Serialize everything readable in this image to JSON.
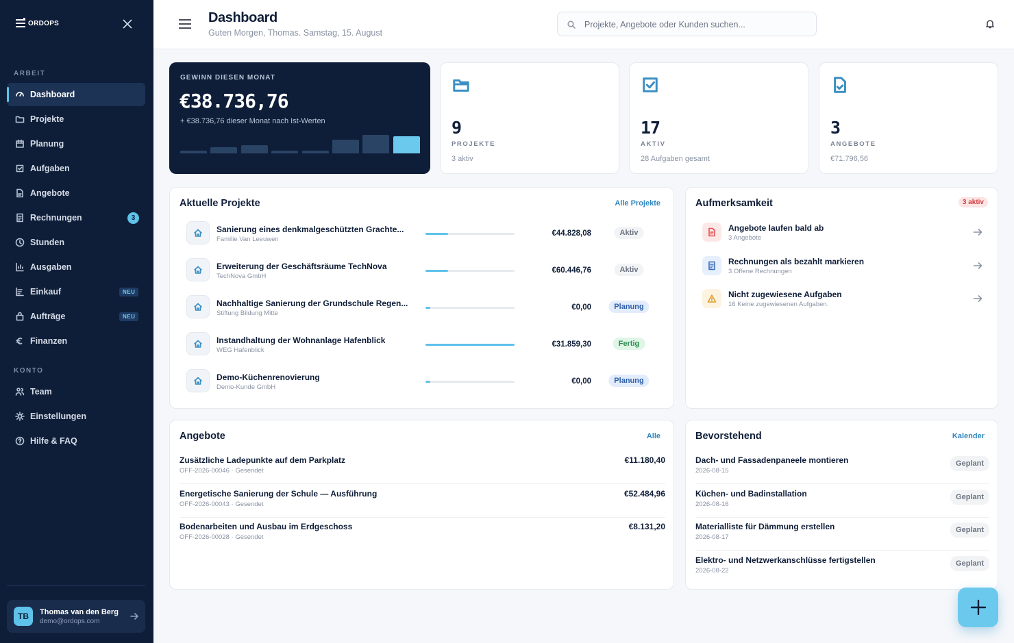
{
  "sidebar": {
    "logo": "ORDOPS",
    "sections": [
      {
        "title": "ARBEIT",
        "items": [
          {
            "label": "Dashboard"
          },
          {
            "label": "Projekte"
          },
          {
            "label": "Planung"
          },
          {
            "label": "Aufgaben"
          },
          {
            "label": "Angebote"
          },
          {
            "label": "Rechnungen",
            "badge": 3
          },
          {
            "label": "Stunden"
          },
          {
            "label": "Ausgaben"
          },
          {
            "label": "Einkauf",
            "badge": "NEU"
          },
          {
            "label": "Aufträge",
            "badge": "NEU"
          },
          {
            "label": "Finanzen"
          }
        ]
      },
      {
        "title": "KONTO",
        "items": [
          {
            "label": "Team"
          },
          {
            "label": "Einstellungen"
          },
          {
            "label": "Hilfe & FAQ"
          }
        ]
      }
    ],
    "user": {
      "initials": "TB",
      "name": "Thomas van den Berg",
      "email": "demo@ordops.com"
    }
  },
  "header": {
    "title": "Dashboard",
    "subtitle": "Guten Morgen, Thomas. Samstag, 15. August",
    "search": "Projekte, Angebote oder Kunden suchen..."
  },
  "profit": {
    "label": "GEWINN DIESEN MONAT",
    "value": "€38.736,76",
    "note": "+ €38.736,76 dieser Monat nach Ist-Werten",
    "bars": [
      4,
      9,
      12,
      4,
      4,
      20,
      27,
      25
    ]
  },
  "stats": [
    {
      "value": 9,
      "label": "PROJEKTE",
      "sub": "3 aktiv"
    },
    {
      "value": 17,
      "label": "AKTIV",
      "sub": "28 Aufgaben gesamt"
    },
    {
      "value": 3,
      "label": "ANGEBOTE",
      "sub": "€71.796,56"
    }
  ],
  "projects": {
    "title": "Aktuelle Projekte",
    "link": "Alle Projekte",
    "rows": [
      {
        "name": "Sanierung eines denkmalgeschützten Grachte...",
        "client": "Familie Van Leeuwen",
        "progress": 25,
        "amount": "€44.828,08",
        "status": "Aktiv",
        "status_color": "#6b7280",
        "status_bg": "#f1f3f5"
      },
      {
        "name": "Erweiterung der Geschäftsräume TechNova",
        "client": "TechNova GmbH",
        "progress": 25,
        "amount": "€60.446,76",
        "status": "Aktiv",
        "status_color": "#6b7280",
        "status_bg": "#f1f3f5"
      },
      {
        "name": "Nachhaltige Sanierung der Grundschule Regen...",
        "client": "Stiftung Bildung Mitte",
        "progress": 5,
        "amount": "€0,00",
        "status": "Planung",
        "status_color": "#2f5fa8",
        "status_bg": "#e3ecfb"
      },
      {
        "name": "Instandhaltung der Wohnanlage Hafenblick",
        "client": "WEG Hafenblick",
        "progress": 100,
        "amount": "€31.859,30",
        "status": "Fertig",
        "status_color": "#2d8a4e",
        "status_bg": "#dff5e6"
      },
      {
        "name": "Demo-Küchenrenovierung",
        "client": "Demo-Kunde GmbH",
        "progress": 5,
        "amount": "€0,00",
        "status": "Planung",
        "status_color": "#2f5fa8",
        "status_bg": "#e3ecfb"
      }
    ]
  },
  "attention": {
    "title": "Aufmerksamkeit",
    "badge": "3 aktiv",
    "rows": [
      {
        "title": "Angebote laufen bald ab",
        "sub": "3 Angebote",
        "color": "#e05252",
        "bg": "#fde8e8"
      },
      {
        "title": "Rechnungen als bezahlt markieren",
        "sub": "3 Offene Rechnungen",
        "color": "#3b6fb6",
        "bg": "#e6effb"
      },
      {
        "title": "Nicht zugewiesene Aufgaben",
        "sub": "16 Keine zugewiesenen Aufgaben.",
        "color": "#e0a030",
        "bg": "#fdf3e1"
      }
    ]
  },
  "offers": {
    "title": "Angebote",
    "link": "Alle",
    "rows": [
      {
        "title": "Zusätzliche Ladepunkte auf dem Parkplatz",
        "sub": "OFF-2026-00046 · Gesendet",
        "amount": "€11.180,40"
      },
      {
        "title": "Energetische Sanierung der Schule — Ausführung",
        "sub": "OFF-2026-00043 · Gesendet",
        "amount": "€52.484,96"
      },
      {
        "title": "Bodenarbeiten und Ausbau im Erdgeschoss",
        "sub": "OFF-2026-00028 · Gesendet",
        "amount": "€8.131,20"
      }
    ]
  },
  "upcoming": {
    "title": "Bevorstehend",
    "link": "Kalender",
    "rows": [
      {
        "title": "Dach- und Fassadenpaneele montieren",
        "date": "2026-08-15",
        "status": "Geplant"
      },
      {
        "title": "Küchen- und Badinstallation",
        "date": "2026-08-16",
        "status": "Geplant"
      },
      {
        "title": "Materialliste für Dämmung erstellen",
        "date": "2026-08-17",
        "status": "Geplant"
      },
      {
        "title": "Elektro- und Netzwerkanschlüsse fertigstellen",
        "date": "2026-08-22",
        "status": "Geplant"
      }
    ]
  }
}
